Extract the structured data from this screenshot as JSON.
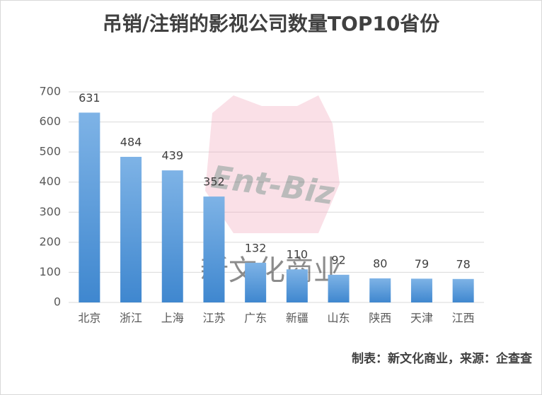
{
  "chart_data": {
    "type": "bar",
    "title": "吊销/注销的影视公司数量TOP10省份",
    "categories": [
      "北京",
      "浙江",
      "上海",
      "江苏",
      "广东",
      "新疆",
      "山东",
      "陕西",
      "天津",
      "江西"
    ],
    "values": [
      631,
      484,
      439,
      352,
      132,
      110,
      92,
      80,
      79,
      78
    ],
    "color": "#5b9bd5",
    "ylim": [
      0,
      700
    ],
    "yticks": [
      0,
      100,
      200,
      300,
      400,
      500,
      600,
      700
    ],
    "grid": true,
    "watermark_logo": "Ent-Biz",
    "watermark_text": "新文化商业",
    "footer": "制表：新文化商业，来源：企查查"
  }
}
